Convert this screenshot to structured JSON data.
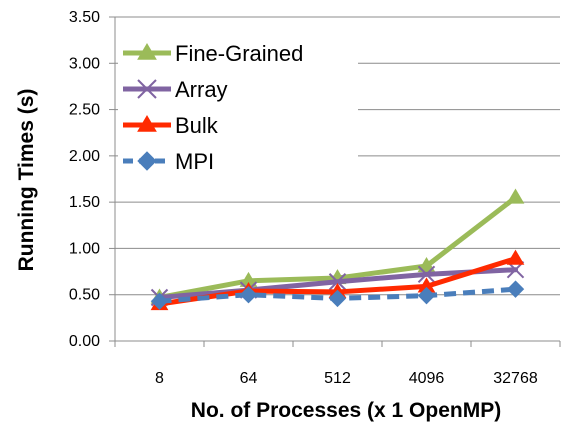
{
  "chart_data": {
    "type": "line",
    "title": "",
    "xlabel": "No. of Processes (x 1 OpenMP)",
    "ylabel": "Running Times (s)",
    "categories": [
      "8",
      "64",
      "512",
      "4096",
      "32768"
    ],
    "ylim": [
      0,
      3.5
    ],
    "yticks": [
      "0.00",
      "0.50",
      "1.00",
      "1.50",
      "2.00",
      "2.50",
      "3.00",
      "3.50"
    ],
    "grid": true,
    "legend_position": "top-left",
    "series": [
      {
        "name": "Fine-Grained",
        "values": [
          0.47,
          0.65,
          0.68,
          0.81,
          1.55
        ],
        "color": "#9BBB59",
        "marker": "triangle",
        "dashed": false
      },
      {
        "name": "Array",
        "values": [
          0.47,
          0.55,
          0.64,
          0.72,
          0.77
        ],
        "color": "#8064A2",
        "marker": "x",
        "dashed": false
      },
      {
        "name": "Bulk",
        "values": [
          0.4,
          0.54,
          0.53,
          0.59,
          0.89
        ],
        "color": "#FF2A00",
        "marker": "triangle",
        "dashed": false
      },
      {
        "name": "MPI",
        "values": [
          0.43,
          0.5,
          0.46,
          0.49,
          0.56
        ],
        "color": "#4A7EBB",
        "marker": "diamond",
        "dashed": true
      }
    ]
  }
}
